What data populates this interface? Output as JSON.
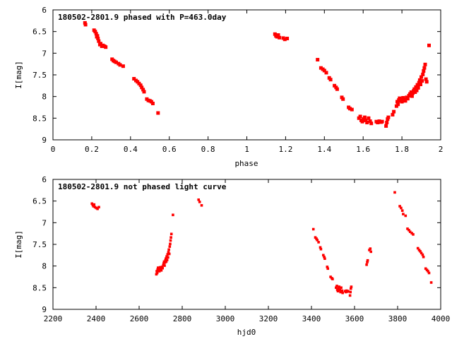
{
  "charts": [
    {
      "type": "scatter",
      "title": "180502-2801.9 phased with P=463.0day",
      "xlabel": "phase",
      "ylabel": "I[mag]",
      "xlim": [
        0,
        2
      ],
      "ylim": [
        9,
        6
      ],
      "y_inverted": true,
      "xticks": [
        "0",
        "0.2",
        "0.4",
        "0.6",
        "0.8",
        "1",
        "1.2",
        "1.4",
        "1.6",
        "1.8",
        "2"
      ],
      "yticks": [
        "6",
        "6.5",
        "7",
        "7.5",
        "8",
        "8.5",
        "9"
      ],
      "marker_color": "#ff0000",
      "grid": false,
      "points": [
        [
          0.165,
          6.3
        ],
        [
          0.168,
          6.34
        ],
        [
          0.212,
          6.47
        ],
        [
          0.218,
          6.5
        ],
        [
          0.223,
          6.55
        ],
        [
          0.226,
          6.62
        ],
        [
          0.229,
          6.6
        ],
        [
          0.232,
          6.66
        ],
        [
          0.236,
          6.72
        ],
        [
          0.242,
          6.8
        ],
        [
          0.246,
          6.78
        ],
        [
          0.252,
          6.84
        ],
        [
          0.258,
          6.82
        ],
        [
          0.266,
          6.84
        ],
        [
          0.272,
          6.86
        ],
        [
          0.305,
          7.14
        ],
        [
          0.312,
          7.17
        ],
        [
          0.318,
          7.19
        ],
        [
          0.326,
          7.21
        ],
        [
          0.338,
          7.24
        ],
        [
          0.346,
          7.27
        ],
        [
          0.362,
          7.3
        ],
        [
          0.418,
          7.59
        ],
        [
          0.428,
          7.63
        ],
        [
          0.436,
          7.66
        ],
        [
          0.444,
          7.7
        ],
        [
          0.452,
          7.74
        ],
        [
          0.458,
          7.79
        ],
        [
          0.465,
          7.84
        ],
        [
          0.47,
          7.89
        ],
        [
          0.484,
          8.06
        ],
        [
          0.492,
          8.09
        ],
        [
          0.5,
          8.1
        ],
        [
          0.508,
          8.12
        ],
        [
          0.515,
          8.16
        ],
        [
          0.542,
          8.38
        ],
        [
          1.145,
          6.56
        ],
        [
          1.15,
          6.6
        ],
        [
          1.156,
          6.62
        ],
        [
          1.162,
          6.58
        ],
        [
          1.168,
          6.64
        ],
        [
          1.188,
          6.65
        ],
        [
          1.196,
          6.68
        ],
        [
          1.208,
          6.66
        ],
        [
          1.365,
          7.15
        ],
        [
          1.382,
          7.34
        ],
        [
          1.392,
          7.37
        ],
        [
          1.4,
          7.4
        ],
        [
          1.41,
          7.45
        ],
        [
          1.425,
          7.57
        ],
        [
          1.432,
          7.61
        ],
        [
          1.452,
          7.75
        ],
        [
          1.46,
          7.79
        ],
        [
          1.466,
          7.83
        ],
        [
          1.49,
          8.02
        ],
        [
          1.496,
          8.06
        ],
        [
          1.525,
          8.25
        ],
        [
          1.532,
          8.28
        ],
        [
          1.542,
          8.3
        ],
        [
          1.578,
          8.5
        ],
        [
          1.585,
          8.46
        ],
        [
          1.59,
          8.55
        ],
        [
          1.596,
          8.58
        ],
        [
          1.602,
          8.52
        ],
        [
          1.608,
          8.48
        ],
        [
          1.614,
          8.55
        ],
        [
          1.62,
          8.6
        ],
        [
          1.628,
          8.5
        ],
        [
          1.636,
          8.57
        ],
        [
          1.642,
          8.62
        ],
        [
          1.668,
          8.58
        ],
        [
          1.675,
          8.6
        ],
        [
          1.683,
          8.57
        ],
        [
          1.692,
          8.59
        ],
        [
          1.698,
          8.58
        ],
        [
          1.718,
          8.68
        ],
        [
          1.722,
          8.6
        ],
        [
          1.726,
          8.52
        ],
        [
          1.73,
          8.48
        ],
        [
          1.752,
          8.42
        ],
        [
          1.758,
          8.35
        ],
        [
          1.772,
          8.22
        ],
        [
          1.776,
          8.12
        ],
        [
          1.78,
          8.18
        ],
        [
          1.784,
          8.08
        ],
        [
          1.788,
          8.04
        ],
        [
          1.792,
          8.1
        ],
        [
          1.796,
          8.06
        ],
        [
          1.8,
          8.12
        ],
        [
          1.806,
          8.03
        ],
        [
          1.812,
          8.07
        ],
        [
          1.818,
          8.1
        ],
        [
          1.824,
          8.02
        ],
        [
          1.83,
          8.05
        ],
        [
          1.836,
          7.98
        ],
        [
          1.842,
          7.94
        ],
        [
          1.848,
          7.9
        ],
        [
          1.852,
          7.99
        ],
        [
          1.856,
          7.92
        ],
        [
          1.86,
          7.87
        ],
        [
          1.864,
          7.83
        ],
        [
          1.868,
          7.9
        ],
        [
          1.872,
          7.78
        ],
        [
          1.876,
          7.86
        ],
        [
          1.88,
          7.73
        ],
        [
          1.884,
          7.8
        ],
        [
          1.888,
          7.68
        ],
        [
          1.892,
          7.62
        ],
        [
          1.896,
          7.72
        ],
        [
          1.9,
          7.55
        ],
        [
          1.904,
          7.64
        ],
        [
          1.908,
          7.49
        ],
        [
          1.912,
          7.41
        ],
        [
          1.916,
          7.34
        ],
        [
          1.92,
          7.26
        ],
        [
          1.924,
          7.6
        ],
        [
          1.928,
          7.66
        ],
        [
          1.94,
          6.82
        ]
      ]
    },
    {
      "type": "scatter",
      "title": "180502-2801.9 not phased light curve",
      "xlabel": "hjd0",
      "ylabel": "I[mag]",
      "xlim": [
        2200,
        4000
      ],
      "ylim": [
        9,
        6
      ],
      "y_inverted": true,
      "xticks": [
        "2200",
        "2400",
        "2600",
        "2800",
        "3000",
        "3200",
        "3400",
        "3600",
        "3800",
        "4000"
      ],
      "yticks": [
        "6",
        "6.5",
        "7",
        "7.5",
        "8",
        "8.5",
        "9"
      ],
      "marker_color": "#ff0000",
      "grid": false,
      "points": [
        [
          2381,
          6.56
        ],
        [
          2385,
          6.59
        ],
        [
          2388,
          6.62
        ],
        [
          2391,
          6.58
        ],
        [
          2395,
          6.64
        ],
        [
          2401,
          6.66
        ],
        [
          2407,
          6.68
        ],
        [
          2413,
          6.64
        ],
        [
          2680,
          8.19
        ],
        [
          2682,
          8.12
        ],
        [
          2684,
          8.16
        ],
        [
          2686,
          8.08
        ],
        [
          2688,
          8.04
        ],
        [
          2690,
          8.1
        ],
        [
          2692,
          8.06
        ],
        [
          2694,
          8.12
        ],
        [
          2697,
          8.03
        ],
        [
          2700,
          8.07
        ],
        [
          2703,
          8.1
        ],
        [
          2706,
          8.02
        ],
        [
          2709,
          8.05
        ],
        [
          2712,
          7.98
        ],
        [
          2714,
          7.94
        ],
        [
          2716,
          7.9
        ],
        [
          2718,
          7.99
        ],
        [
          2720,
          7.92
        ],
        [
          2722,
          7.87
        ],
        [
          2724,
          7.83
        ],
        [
          2726,
          7.9
        ],
        [
          2728,
          7.78
        ],
        [
          2730,
          7.86
        ],
        [
          2732,
          7.73
        ],
        [
          2734,
          7.8
        ],
        [
          2736,
          7.68
        ],
        [
          2738,
          7.62
        ],
        [
          2740,
          7.72
        ],
        [
          2742,
          7.55
        ],
        [
          2744,
          7.49
        ],
        [
          2746,
          7.41
        ],
        [
          2748,
          7.34
        ],
        [
          2750,
          7.26
        ],
        [
          2757,
          6.82
        ],
        [
          2876,
          6.47
        ],
        [
          2881,
          6.52
        ],
        [
          2890,
          6.6
        ],
        [
          3409,
          7.15
        ],
        [
          3418,
          7.34
        ],
        [
          3423,
          7.37
        ],
        [
          3427,
          7.4
        ],
        [
          3433,
          7.45
        ],
        [
          3441,
          7.57
        ],
        [
          3444,
          7.61
        ],
        [
          3455,
          7.75
        ],
        [
          3459,
          7.79
        ],
        [
          3462,
          7.83
        ],
        [
          3473,
          8.02
        ],
        [
          3476,
          8.06
        ],
        [
          3489,
          8.25
        ],
        [
          3494,
          8.28
        ],
        [
          3498,
          8.3
        ],
        [
          3514,
          8.5
        ],
        [
          3518,
          8.46
        ],
        [
          3520,
          8.55
        ],
        [
          3523,
          8.58
        ],
        [
          3526,
          8.52
        ],
        [
          3529,
          8.48
        ],
        [
          3532,
          8.55
        ],
        [
          3535,
          8.6
        ],
        [
          3538,
          8.5
        ],
        [
          3542,
          8.57
        ],
        [
          3545,
          8.62
        ],
        [
          3556,
          8.58
        ],
        [
          3560,
          8.6
        ],
        [
          3563,
          8.57
        ],
        [
          3567,
          8.59
        ],
        [
          3570,
          8.58
        ],
        [
          3579,
          8.68
        ],
        [
          3581,
          8.6
        ],
        [
          3583,
          8.52
        ],
        [
          3585,
          8.48
        ],
        [
          3656,
          7.97
        ],
        [
          3659,
          7.91
        ],
        [
          3661,
          7.87
        ],
        [
          3669,
          7.63
        ],
        [
          3673,
          7.6
        ],
        [
          3676,
          7.67
        ],
        [
          3787,
          6.3
        ],
        [
          3810,
          6.62
        ],
        [
          3816,
          6.66
        ],
        [
          3822,
          6.72
        ],
        [
          3826,
          6.8
        ],
        [
          3837,
          6.84
        ],
        [
          3846,
          7.14
        ],
        [
          3852,
          7.17
        ],
        [
          3858,
          7.21
        ],
        [
          3866,
          7.24
        ],
        [
          3872,
          7.27
        ],
        [
          3894,
          7.59
        ],
        [
          3900,
          7.63
        ],
        [
          3905,
          7.66
        ],
        [
          3910,
          7.7
        ],
        [
          3916,
          7.74
        ],
        [
          3920,
          7.79
        ],
        [
          3930,
          8.06
        ],
        [
          3936,
          8.09
        ],
        [
          3941,
          8.12
        ],
        [
          3946,
          8.16
        ],
        [
          3956,
          8.38
        ]
      ]
    }
  ]
}
